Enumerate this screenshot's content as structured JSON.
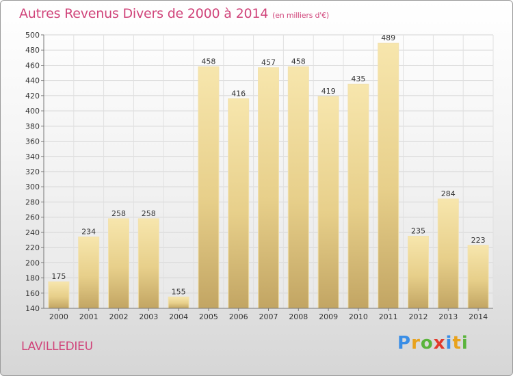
{
  "title": "Autres Revenus Divers de 2000 à 2014",
  "subtitle": "(en milliers d'€)",
  "commune": "LAVILLEDIEU",
  "logo": {
    "letters": [
      "P",
      "r",
      "o",
      "x",
      "i",
      "t",
      "i"
    ],
    "colors": [
      "#3a8ee6",
      "#e8a21c",
      "#5ab43c",
      "#e23a2c",
      "#3a8ee6",
      "#e8a21c",
      "#5ab43c"
    ]
  },
  "colors": {
    "title": "#d0447a",
    "bar_light": "#f6e2a6",
    "bar_dark": "#c4a865"
  },
  "chart_data": {
    "type": "bar",
    "title": "Autres Revenus Divers de 2000 à 2014",
    "categories": [
      "2000",
      "2001",
      "2002",
      "2003",
      "2004",
      "2005",
      "2006",
      "2007",
      "2008",
      "2009",
      "2010",
      "2011",
      "2012",
      "2013",
      "2014"
    ],
    "values": [
      175,
      234,
      258,
      258,
      155,
      458,
      416,
      457,
      458,
      419,
      435,
      489,
      235,
      284,
      223
    ],
    "ylim": [
      140,
      500
    ],
    "yticks": [
      140,
      160,
      180,
      200,
      220,
      240,
      260,
      280,
      300,
      320,
      340,
      360,
      380,
      400,
      420,
      440,
      460,
      480,
      500
    ],
    "grid": true,
    "xlabel": "",
    "ylabel": ""
  }
}
